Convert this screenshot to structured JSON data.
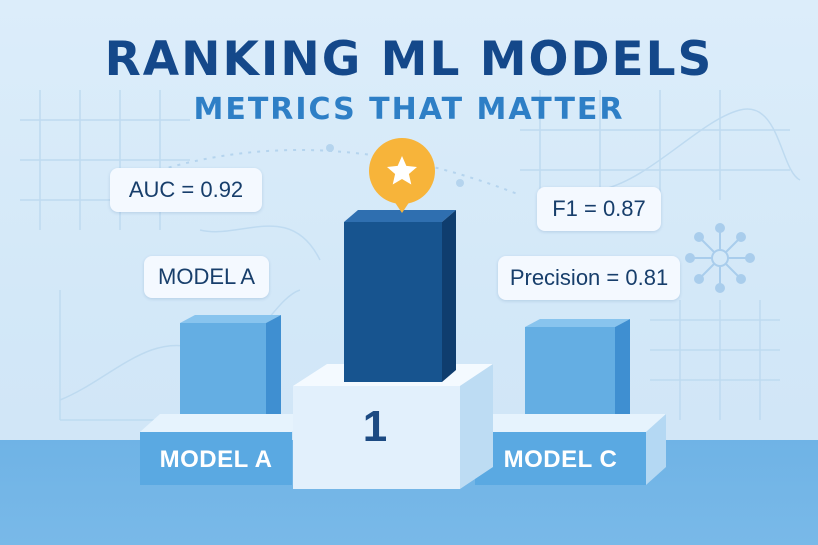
{
  "header": {
    "title": "RANKING ML MODELS",
    "subtitle": "METRICS THAT MATTER"
  },
  "callouts": {
    "auc": "AUC = 0.92",
    "model_a": "MODEL A",
    "f1": "F1 = 0.87",
    "precision": "Precision = 0.81"
  },
  "podium": {
    "left_label": "MODEL A",
    "center_rank": "1",
    "right_label": "MODEL C"
  },
  "colors": {
    "title": "#14488a",
    "subtitle": "#2e7fc6",
    "winner_bar": "#17548f",
    "side_bar": "#64aee3",
    "star_badge": "#f7b43a",
    "floor": "#72b5e6"
  },
  "icons": {
    "winner_badge": "star-icon",
    "network": "network-icon"
  }
}
